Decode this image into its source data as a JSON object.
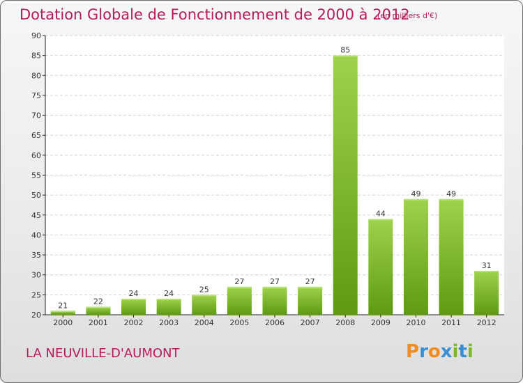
{
  "title": "Dotation Globale de Fonctionnement de 2000 à 2012",
  "subtitle": "(en milliers d'€)",
  "commune": "LA NEUVILLE-D'AUMONT",
  "logo": {
    "letters": [
      "P",
      "r",
      "o",
      "x",
      "i",
      "t",
      "i"
    ],
    "colors": [
      "#f28c1c",
      "#3a8fd1",
      "#f28c1c",
      "#3a8fd1",
      "#7ab72a",
      "#3a8fd1",
      "#7ab72a"
    ]
  },
  "colors": {
    "accent": "#b7195a",
    "bar_light": "#9fd24e",
    "bar_dark": "#5e9a12",
    "grid": "#d4d4d4",
    "axis": "#222222"
  },
  "chart_data": {
    "type": "bar",
    "categories": [
      "2000",
      "2001",
      "2002",
      "2003",
      "2004",
      "2005",
      "2006",
      "2007",
      "2008",
      "2009",
      "2010",
      "2011",
      "2012"
    ],
    "values": [
      21,
      22,
      24,
      24,
      25,
      27,
      27,
      27,
      85,
      44,
      49,
      49,
      31
    ],
    "ylim": [
      20,
      90
    ],
    "yticks": [
      20,
      25,
      30,
      35,
      40,
      45,
      50,
      55,
      60,
      65,
      70,
      75,
      80,
      85,
      90
    ],
    "grid": true
  }
}
